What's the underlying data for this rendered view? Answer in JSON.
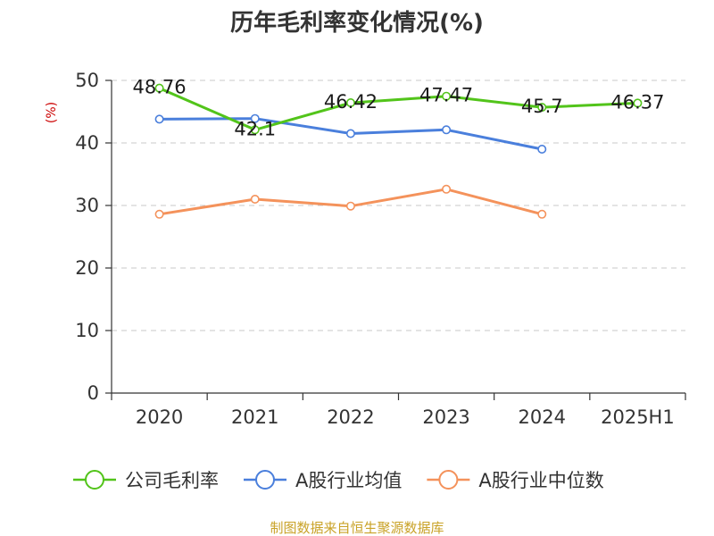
{
  "chart_data": {
    "type": "line",
    "title": "历年毛利率变化情况(%)",
    "ylabel": "(%)",
    "xlabel": "",
    "categories": [
      "2020",
      "2021",
      "2022",
      "2023",
      "2024",
      "2025H1"
    ],
    "ylim": [
      0,
      50
    ],
    "yticks": [
      0,
      10,
      20,
      30,
      40,
      50
    ],
    "grid": true,
    "legend_position": "bottom",
    "series": [
      {
        "name": "公司毛利率",
        "color": "#52c41a",
        "values": [
          48.76,
          42.1,
          46.42,
          47.47,
          45.7,
          46.37
        ],
        "labels": [
          "48.76",
          "42.1",
          "46.42",
          "47.47",
          "45.7",
          "46.37"
        ]
      },
      {
        "name": "A股行业均值",
        "color": "#4a7fdc",
        "values": [
          43.8,
          43.9,
          41.5,
          42.1,
          39.0,
          null
        ],
        "labels": null
      },
      {
        "name": "A股行业中位数",
        "color": "#f4925b",
        "values": [
          28.6,
          31.0,
          29.9,
          32.6,
          28.6,
          null
        ],
        "labels": null
      }
    ],
    "source": "制图数据来自恒生聚源数据库"
  }
}
